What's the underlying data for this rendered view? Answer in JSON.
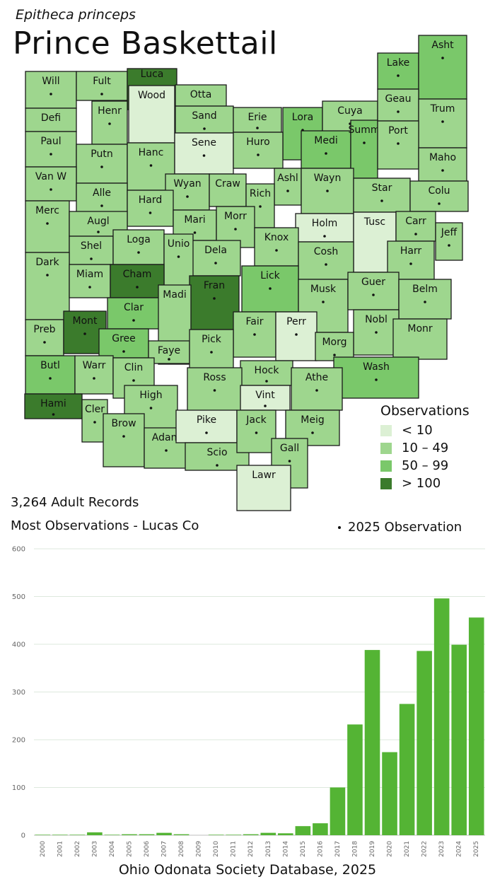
{
  "header": {
    "species": "Epitheca princeps",
    "common_name": "Prince Baskettail"
  },
  "colors": {
    "lt10": "#dcf0d4",
    "10_49": "#9ed68e",
    "50_99": "#7ac86a",
    "gt100": "#3b7b2c",
    "bar": "#54b434",
    "grid": "#dde8dd"
  },
  "legend": {
    "title": "Observations",
    "items": [
      {
        "label": "< 10",
        "color": "#dcf0d4"
      },
      {
        "label": "10 – 49",
        "color": "#9ed68e"
      },
      {
        "label": "50 – 99",
        "color": "#7ac86a"
      },
      {
        "label": "> 100",
        "color": "#3b7b2c"
      }
    ]
  },
  "stats": {
    "records": "3,264 Adult Records",
    "most": "Most Observations - Lucas Co",
    "obs_2025": "2025  Observation"
  },
  "footer": "Ohio Odonata Society Database, 2025",
  "counties": [
    {
      "name": "Will",
      "cls": "10_49",
      "dot": true
    },
    {
      "name": "Fult",
      "cls": "10_49",
      "dot": true
    },
    {
      "name": "Luca",
      "cls": "gt100",
      "dot": true
    },
    {
      "name": "Otta",
      "cls": "10_49",
      "dot": false
    },
    {
      "name": "Wood",
      "cls": "lt10",
      "dot": false
    },
    {
      "name": "Defi",
      "cls": "10_49",
      "dot": false
    },
    {
      "name": "Henr",
      "cls": "10_49",
      "dot": true
    },
    {
      "name": "Sand",
      "cls": "10_49",
      "dot": true
    },
    {
      "name": "Erie",
      "cls": "10_49",
      "dot": true
    },
    {
      "name": "Lora",
      "cls": "50_99",
      "dot": true
    },
    {
      "name": "Cuya",
      "cls": "10_49",
      "dot": true
    },
    {
      "name": "Lake",
      "cls": "50_99",
      "dot": true
    },
    {
      "name": "Asht",
      "cls": "50_99",
      "dot": true
    },
    {
      "name": "Geau",
      "cls": "10_49",
      "dot": true
    },
    {
      "name": "Trum",
      "cls": "10_49",
      "dot": true
    },
    {
      "name": "Paul",
      "cls": "10_49",
      "dot": true
    },
    {
      "name": "Putn",
      "cls": "10_49",
      "dot": true
    },
    {
      "name": "Hanc",
      "cls": "10_49",
      "dot": true
    },
    {
      "name": "Sene",
      "cls": "lt10",
      "dot": true
    },
    {
      "name": "Huro",
      "cls": "10_49",
      "dot": true
    },
    {
      "name": "Medi",
      "cls": "50_99",
      "dot": true
    },
    {
      "name": "Summ",
      "cls": "50_99",
      "dot": true
    },
    {
      "name": "Port",
      "cls": "10_49",
      "dot": true
    },
    {
      "name": "Maho",
      "cls": "10_49",
      "dot": true
    },
    {
      "name": "Van W",
      "cls": "10_49",
      "dot": true
    },
    {
      "name": "Alle",
      "cls": "10_49",
      "dot": true
    },
    {
      "name": "Wyan",
      "cls": "10_49",
      "dot": true
    },
    {
      "name": "Craw",
      "cls": "10_49",
      "dot": false
    },
    {
      "name": "Ashl",
      "cls": "10_49",
      "dot": true
    },
    {
      "name": "Wayn",
      "cls": "10_49",
      "dot": true
    },
    {
      "name": "Star",
      "cls": "10_49",
      "dot": true
    },
    {
      "name": "Colu",
      "cls": "10_49",
      "dot": true
    },
    {
      "name": "Rich",
      "cls": "10_49",
      "dot": true
    },
    {
      "name": "Hard",
      "cls": "10_49",
      "dot": true
    },
    {
      "name": "Merc",
      "cls": "10_49",
      "dot": true
    },
    {
      "name": "Augl",
      "cls": "10_49",
      "dot": true
    },
    {
      "name": "Mari",
      "cls": "10_49",
      "dot": true
    },
    {
      "name": "Morr",
      "cls": "10_49",
      "dot": true
    },
    {
      "name": "Holm",
      "cls": "lt10",
      "dot": true
    },
    {
      "name": "Tusc",
      "cls": "lt10",
      "dot": false
    },
    {
      "name": "Carr",
      "cls": "10_49",
      "dot": true
    },
    {
      "name": "Jeff",
      "cls": "10_49",
      "dot": true
    },
    {
      "name": "Shel",
      "cls": "10_49",
      "dot": true
    },
    {
      "name": "Loga",
      "cls": "10_49",
      "dot": true
    },
    {
      "name": "Knox",
      "cls": "10_49",
      "dot": true
    },
    {
      "name": "Dela",
      "cls": "10_49",
      "dot": true
    },
    {
      "name": "Unio",
      "cls": "10_49",
      "dot": true
    },
    {
      "name": "Cosh",
      "cls": "10_49",
      "dot": true
    },
    {
      "name": "Harr",
      "cls": "10_49",
      "dot": true
    },
    {
      "name": "Dark",
      "cls": "10_49",
      "dot": true
    },
    {
      "name": "Miam",
      "cls": "10_49",
      "dot": true
    },
    {
      "name": "Cham",
      "cls": "gt100",
      "dot": true
    },
    {
      "name": "Lick",
      "cls": "50_99",
      "dot": true
    },
    {
      "name": "Musk",
      "cls": "10_49",
      "dot": true
    },
    {
      "name": "Guer",
      "cls": "10_49",
      "dot": true
    },
    {
      "name": "Belm",
      "cls": "10_49",
      "dot": true
    },
    {
      "name": "Clar",
      "cls": "50_99",
      "dot": true
    },
    {
      "name": "Fran",
      "cls": "gt100",
      "dot": true
    },
    {
      "name": "Madi",
      "cls": "10_49",
      "dot": false
    },
    {
      "name": "Fair",
      "cls": "10_49",
      "dot": true
    },
    {
      "name": "Perr",
      "cls": "lt10",
      "dot": true
    },
    {
      "name": "Preb",
      "cls": "10_49",
      "dot": true
    },
    {
      "name": "Mont",
      "cls": "gt100",
      "dot": true
    },
    {
      "name": "Gree",
      "cls": "50_99",
      "dot": true
    },
    {
      "name": "Nobl",
      "cls": "10_49",
      "dot": true
    },
    {
      "name": "Monr",
      "cls": "10_49",
      "dot": false
    },
    {
      "name": "Morg",
      "cls": "10_49",
      "dot": true
    },
    {
      "name": "Faye",
      "cls": "10_49",
      "dot": true
    },
    {
      "name": "Pick",
      "cls": "10_49",
      "dot": true
    },
    {
      "name": "Butl",
      "cls": "50_99",
      "dot": true
    },
    {
      "name": "Warr",
      "cls": "10_49",
      "dot": true
    },
    {
      "name": "Clin",
      "cls": "10_49",
      "dot": true
    },
    {
      "name": "Hock",
      "cls": "10_49",
      "dot": true
    },
    {
      "name": "Wash",
      "cls": "50_99",
      "dot": true
    },
    {
      "name": "Athe",
      "cls": "10_49",
      "dot": true
    },
    {
      "name": "Ross",
      "cls": "10_49",
      "dot": true
    },
    {
      "name": "Vint",
      "cls": "lt10",
      "dot": true
    },
    {
      "name": "High",
      "cls": "10_49",
      "dot": true
    },
    {
      "name": "Hami",
      "cls": "gt100",
      "dot": true
    },
    {
      "name": "Cler",
      "cls": "10_49",
      "dot": true
    },
    {
      "name": "Brow",
      "cls": "10_49",
      "dot": true
    },
    {
      "name": "Adam",
      "cls": "10_49",
      "dot": true
    },
    {
      "name": "Pike",
      "cls": "lt10",
      "dot": true
    },
    {
      "name": "Scio",
      "cls": "10_49",
      "dot": true
    },
    {
      "name": "Jack",
      "cls": "10_49",
      "dot": true
    },
    {
      "name": "Meig",
      "cls": "10_49",
      "dot": true
    },
    {
      "name": "Gall",
      "cls": "10_49",
      "dot": true
    },
    {
      "name": "Lawr",
      "cls": "lt10",
      "dot": false
    }
  ],
  "chart_data": {
    "type": "bar",
    "categories": [
      "2000",
      "2001",
      "2002",
      "2003",
      "2004",
      "2005",
      "2006",
      "2007",
      "2008",
      "2009",
      "2010",
      "2011",
      "2012",
      "2013",
      "2014",
      "2015",
      "2016",
      "2017",
      "2018",
      "2019",
      "2020",
      "2021",
      "2022",
      "2023",
      "2024",
      "2025"
    ],
    "values": [
      1,
      1,
      1,
      6,
      1,
      2,
      2,
      5,
      2,
      0,
      1,
      1,
      2,
      5,
      4,
      19,
      25,
      100,
      232,
      388,
      174,
      275,
      386,
      496,
      399,
      456
    ],
    "ylim": [
      0,
      600
    ],
    "yticks": [
      0,
      100,
      200,
      300,
      400,
      500,
      600
    ],
    "grid": true,
    "title": "",
    "xlabel": "",
    "ylabel": ""
  }
}
